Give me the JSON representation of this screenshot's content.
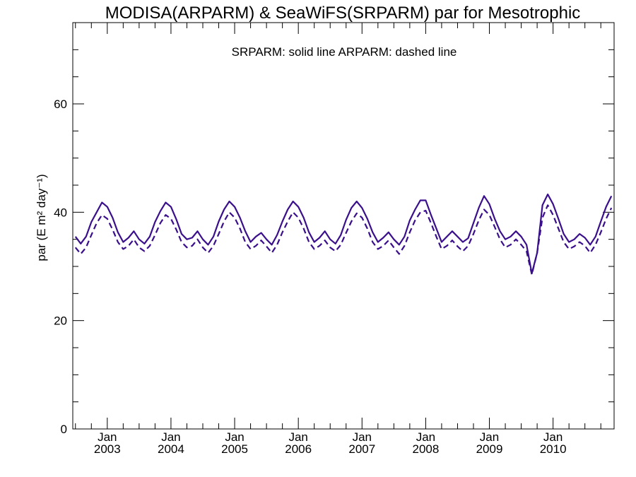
{
  "chart_data": {
    "type": "line",
    "title": "MODISA(ARPARM) & SeaWiFS(SRPARM)  par for Mesotrophic",
    "annotation": "SRPARM: solid line   ARPARM: dashed line",
    "ylabel": "par (E m² day⁻¹)",
    "xlabel": "",
    "ylim": [
      0,
      75
    ],
    "xlim": [
      "2002-07",
      "2010-12"
    ],
    "y_ticks": [
      0,
      20,
      40,
      60
    ],
    "y_minor_step": 5,
    "x_tick_months": [
      "Jan",
      "Jan",
      "Jan",
      "Jan",
      "Jan",
      "Jan",
      "Jan",
      "Jan"
    ],
    "x_tick_years": [
      "2003",
      "2004",
      "2005",
      "2006",
      "2007",
      "2008",
      "2009",
      "2010"
    ],
    "x_tick_dates": [
      "2003-01",
      "2004-01",
      "2005-01",
      "2006-01",
      "2007-01",
      "2008-01",
      "2009-01",
      "2010-01"
    ],
    "line_color": "#3a0f8c",
    "x": [
      "2002-07",
      "2002-08",
      "2002-09",
      "2002-10",
      "2002-11",
      "2002-12",
      "2003-01",
      "2003-02",
      "2003-03",
      "2003-04",
      "2003-05",
      "2003-06",
      "2003-07",
      "2003-08",
      "2003-09",
      "2003-10",
      "2003-11",
      "2003-12",
      "2004-01",
      "2004-02",
      "2004-03",
      "2004-04",
      "2004-05",
      "2004-06",
      "2004-07",
      "2004-08",
      "2004-09",
      "2004-10",
      "2004-11",
      "2004-12",
      "2005-01",
      "2005-02",
      "2005-03",
      "2005-04",
      "2005-05",
      "2005-06",
      "2005-07",
      "2005-08",
      "2005-09",
      "2005-10",
      "2005-11",
      "2005-12",
      "2006-01",
      "2006-02",
      "2006-03",
      "2006-04",
      "2006-05",
      "2006-06",
      "2006-07",
      "2006-08",
      "2006-09",
      "2006-10",
      "2006-11",
      "2006-12",
      "2007-01",
      "2007-02",
      "2007-03",
      "2007-04",
      "2007-05",
      "2007-06",
      "2007-07",
      "2007-08",
      "2007-09",
      "2007-10",
      "2007-11",
      "2007-12",
      "2008-01",
      "2008-02",
      "2008-03",
      "2008-04",
      "2008-05",
      "2008-06",
      "2008-07",
      "2008-08",
      "2008-09",
      "2008-10",
      "2008-11",
      "2008-12",
      "2009-01",
      "2009-02",
      "2009-03",
      "2009-04",
      "2009-05",
      "2009-06",
      "2009-07",
      "2009-08",
      "2009-09",
      "2009-10",
      "2009-11",
      "2009-12",
      "2010-01",
      "2010-02",
      "2010-03",
      "2010-04",
      "2010-05",
      "2010-06",
      "2010-07",
      "2010-08",
      "2010-09",
      "2010-10",
      "2010-11",
      "2010-12"
    ],
    "series": [
      {
        "name": "SRPARM",
        "style": "solid",
        "values": [
          35.5,
          34.2,
          35.5,
          38.2,
          40.0,
          41.8,
          41.0,
          39.0,
          36.3,
          34.5,
          35.3,
          36.5,
          35.0,
          34.2,
          35.5,
          38.2,
          40.2,
          41.8,
          41.0,
          38.7,
          36.0,
          35.0,
          35.3,
          36.5,
          35.0,
          34.0,
          35.5,
          38.3,
          40.5,
          42.0,
          41.0,
          39.0,
          36.5,
          34.5,
          35.5,
          36.2,
          35.0,
          34.0,
          35.8,
          38.3,
          40.5,
          42.0,
          41.0,
          39.0,
          36.3,
          34.5,
          35.3,
          36.5,
          35.0,
          34.2,
          35.8,
          38.6,
          40.8,
          42.0,
          40.8,
          38.8,
          36.3,
          34.5,
          35.3,
          36.3,
          35.0,
          34.0,
          35.5,
          38.5,
          40.5,
          42.2,
          42.2,
          39.5,
          37.0,
          34.5,
          35.5,
          36.5,
          35.5,
          34.5,
          35.2,
          38.0,
          40.8,
          43.0,
          41.5,
          38.8,
          36.5,
          35.0,
          35.5,
          36.5,
          35.5,
          34.0,
          28.7,
          32.5,
          41.3,
          43.3,
          41.5,
          38.8,
          36.0,
          34.5,
          35.0,
          36.0,
          35.3,
          34.0,
          35.5,
          38.3,
          41.0,
          43.0
        ]
      },
      {
        "name": "ARPARM",
        "style": "dashed",
        "values": [
          33.5,
          32.3,
          33.5,
          35.8,
          38.0,
          39.5,
          38.8,
          36.8,
          34.5,
          33.2,
          33.8,
          35.0,
          33.5,
          32.8,
          33.8,
          35.8,
          38.0,
          39.5,
          38.8,
          36.8,
          34.5,
          33.5,
          33.8,
          35.0,
          33.5,
          32.5,
          33.8,
          36.0,
          38.3,
          40.0,
          39.0,
          37.0,
          34.5,
          33.2,
          33.8,
          34.8,
          33.7,
          32.5,
          34.0,
          36.3,
          38.3,
          40.0,
          39.0,
          37.0,
          34.5,
          33.2,
          33.8,
          34.8,
          33.5,
          32.8,
          34.0,
          36.2,
          38.3,
          39.8,
          39.0,
          37.0,
          34.5,
          33.2,
          33.8,
          34.8,
          33.5,
          32.3,
          33.8,
          36.3,
          38.5,
          40.0,
          40.3,
          38.0,
          35.5,
          33.2,
          33.8,
          34.8,
          33.7,
          32.8,
          33.8,
          36.0,
          38.5,
          40.5,
          39.5,
          37.3,
          35.0,
          33.5,
          34.0,
          35.0,
          34.0,
          32.8,
          28.5,
          32.5,
          39.0,
          41.3,
          39.5,
          37.0,
          34.5,
          33.2,
          33.7,
          34.5,
          33.8,
          32.5,
          34.0,
          36.3,
          38.8,
          40.8
        ]
      }
    ]
  }
}
